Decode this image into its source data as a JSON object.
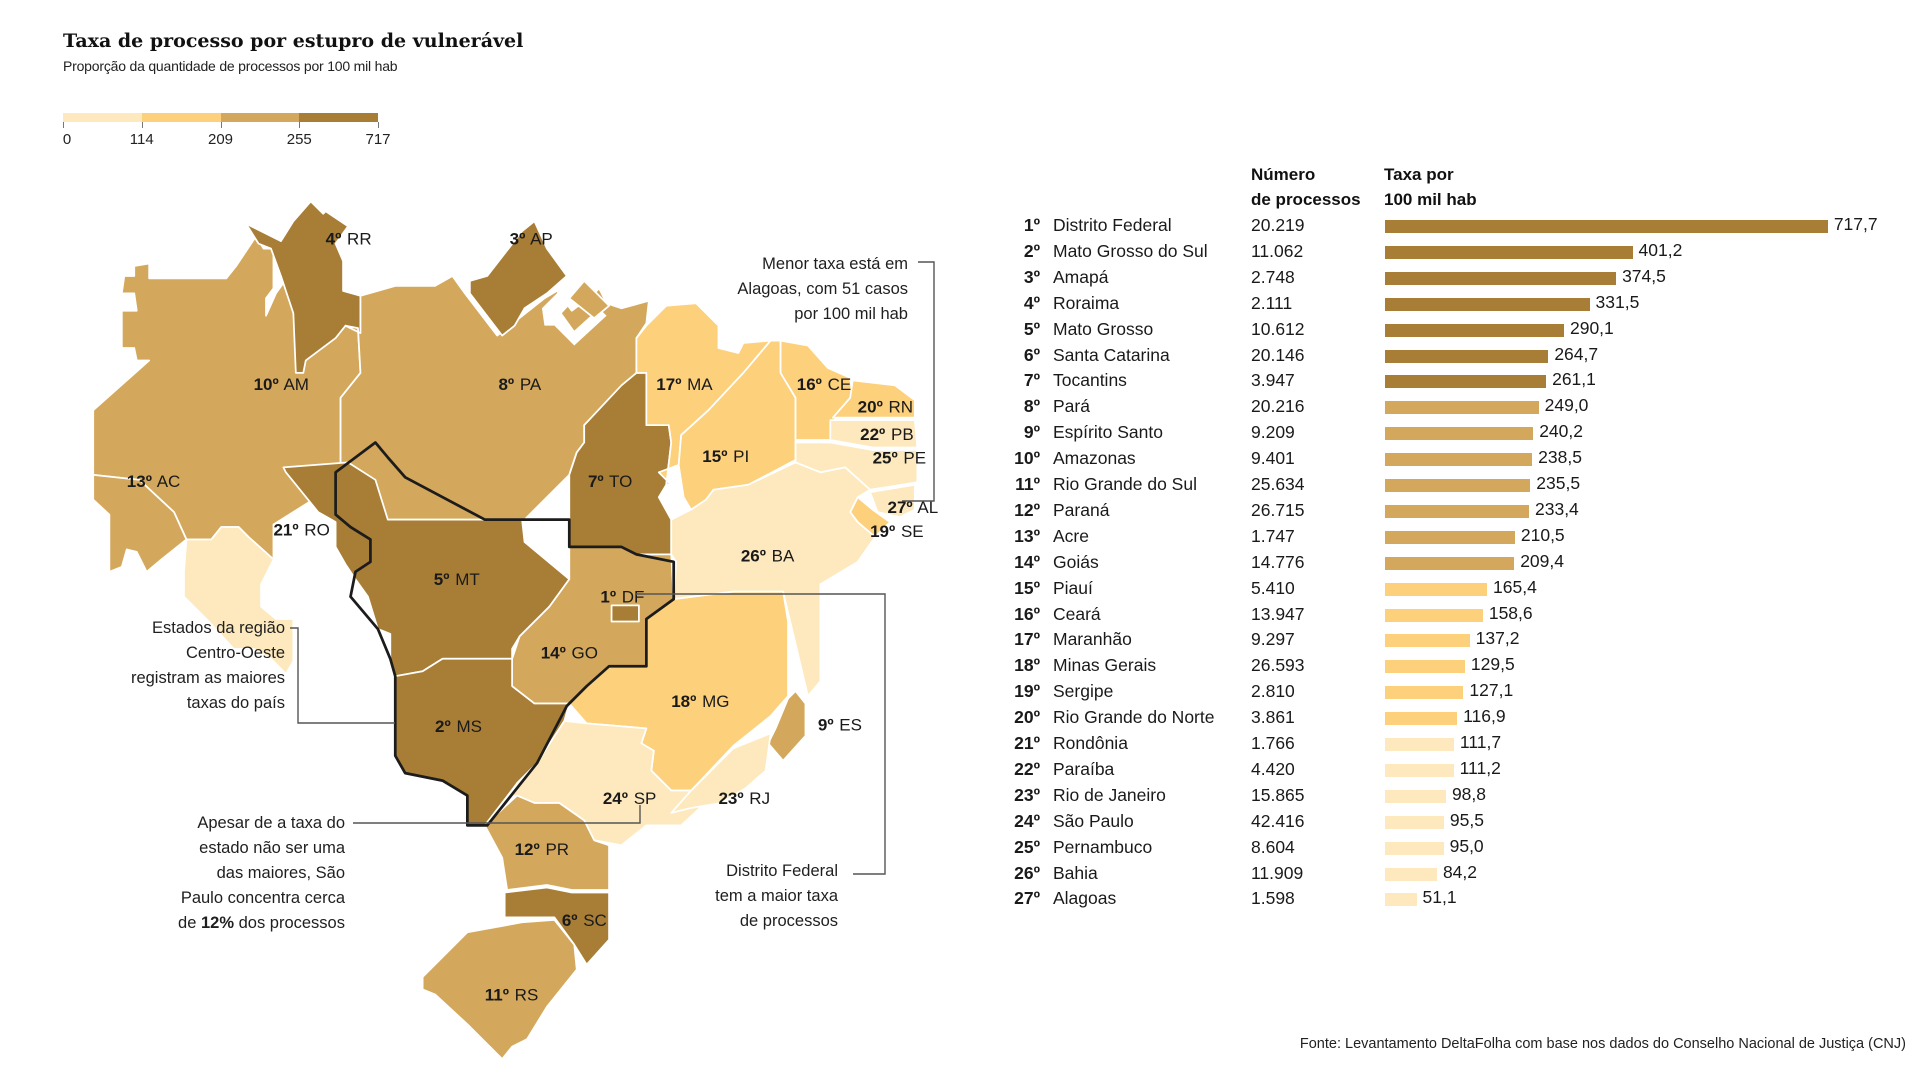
{
  "title": "Taxa de processo por estupro de vulnerável",
  "subtitle": "Proporção da quantidade de processos por 100 mil hab",
  "legend": {
    "ticks": [
      "0",
      "114",
      "209",
      "255",
      "717"
    ],
    "breaks": [
      0,
      114,
      209,
      255,
      717
    ],
    "colors": [
      "#fde9bd",
      "#fdd07c",
      "#d4a85c",
      "#a87e36"
    ]
  },
  "annotations": {
    "lowest": [
      "Menor taxa está em",
      "Alagoas, com 51 casos",
      "por 100 mil hab"
    ],
    "centro_oeste": [
      "Estados da região",
      "Centro-Oeste",
      "registram as maiores",
      "taxas do país"
    ],
    "sao_paulo": [
      "Apesar de a taxa do",
      "estado não ser uma",
      "das maiores, São",
      "Paulo concentra cerca"
    ],
    "sao_paulo_last": {
      "pre": "de ",
      "bold": "12%",
      "post": " dos processos"
    },
    "df": [
      "Distrito Federal",
      "tem a maior taxa",
      "de processos"
    ]
  },
  "table": {
    "header_count": [
      "Número",
      "de processos"
    ],
    "header_rate": [
      "Taxa por",
      "100 mil hab"
    ]
  },
  "map_labels": {
    "RR": {
      "rank": "4º",
      "uf": "RR"
    },
    "AP": {
      "rank": "3º",
      "uf": "AP"
    },
    "AM": {
      "rank": "10º",
      "uf": "AM"
    },
    "PA": {
      "rank": "8º",
      "uf": "PA"
    },
    "MA": {
      "rank": "17º",
      "uf": "MA"
    },
    "CE": {
      "rank": "16º",
      "uf": "CE"
    },
    "RN": {
      "rank": "20º",
      "uf": "RN"
    },
    "PB": {
      "rank": "22º",
      "uf": "PB"
    },
    "PE": {
      "rank": "25º",
      "uf": "PE"
    },
    "AL": {
      "rank": "27º",
      "uf": "AL"
    },
    "SE": {
      "rank": "19º",
      "uf": "SE"
    },
    "PI": {
      "rank": "15º",
      "uf": "PI"
    },
    "AC": {
      "rank": "13º",
      "uf": "AC"
    },
    "RO": {
      "rank": "21º",
      "uf": "RO"
    },
    "TO": {
      "rank": "7º",
      "uf": "TO"
    },
    "BA": {
      "rank": "26º",
      "uf": "BA"
    },
    "MT": {
      "rank": "5º",
      "uf": "MT"
    },
    "DF": {
      "rank": "1º",
      "uf": "DF"
    },
    "GO": {
      "rank": "14º",
      "uf": "GO"
    },
    "MG": {
      "rank": "18º",
      "uf": "MG"
    },
    "ES": {
      "rank": "9º",
      "uf": "ES"
    },
    "MS": {
      "rank": "2º",
      "uf": "MS"
    },
    "SP": {
      "rank": "24º",
      "uf": "SP"
    },
    "RJ": {
      "rank": "23º",
      "uf": "RJ"
    },
    "PR": {
      "rank": "12º",
      "uf": "PR"
    },
    "SC": {
      "rank": "6º",
      "uf": "SC"
    },
    "RS": {
      "rank": "11º",
      "uf": "RS"
    }
  },
  "source": "Fonte: Levantamento DeltaFolha com base nos dados do Conselho Nacional de Justiça (CNJ)",
  "chart_data": {
    "type": "bar",
    "orientation": "horizontal",
    "title": "Taxa de processo por estupro de vulnerável",
    "subtitle": "Proporção da quantidade de processos por 100 mil hab",
    "xlabel": "Taxa por 100 mil hab",
    "ylabel": "",
    "xlim": [
      0,
      717.7
    ],
    "grid": false,
    "legend": "top-left",
    "ranks": [
      "1º",
      "2º",
      "3º",
      "4º",
      "5º",
      "6º",
      "7º",
      "8º",
      "9º",
      "10º",
      "11º",
      "12º",
      "13º",
      "14º",
      "15º",
      "16º",
      "17º",
      "18º",
      "19º",
      "20º",
      "21º",
      "22º",
      "23º",
      "24º",
      "25º",
      "26º",
      "27º"
    ],
    "categories": [
      "Distrito Federal",
      "Mato Grosso do Sul",
      "Amapá",
      "Roraima",
      "Mato Grosso",
      "Santa Catarina",
      "Tocantins",
      "Pará",
      "Espírito Santo",
      "Amazonas",
      "Rio Grande do Sul",
      "Paraná",
      "Acre",
      "Goiás",
      "Piauí",
      "Ceará",
      "Maranhão",
      "Minas Gerais",
      "Sergipe",
      "Rio Grande do Norte",
      "Rondônia",
      "Paraíba",
      "Rio de Janeiro",
      "São Paulo",
      "Pernambuco",
      "Bahia",
      "Alagoas"
    ],
    "uf": [
      "DF",
      "MS",
      "AP",
      "RR",
      "MT",
      "SC",
      "TO",
      "PA",
      "ES",
      "AM",
      "RS",
      "PR",
      "AC",
      "GO",
      "PI",
      "CE",
      "MA",
      "MG",
      "SE",
      "RN",
      "RO",
      "PB",
      "RJ",
      "SP",
      "PE",
      "BA",
      "AL"
    ],
    "processes_label": [
      "20.219",
      "11.062",
      "2.748",
      "2.111",
      "10.612",
      "20.146",
      "3.947",
      "20.216",
      "9.209",
      "9.401",
      "25.634",
      "26.715",
      "1.747",
      "14.776",
      "5.410",
      "13.947",
      "9.297",
      "26.593",
      "2.810",
      "3.861",
      "1.766",
      "4.420",
      "15.865",
      "42.416",
      "8.604",
      "11.909",
      "1.598"
    ],
    "series": [
      {
        "name": "Número de processos",
        "values": [
          20219,
          11062,
          2748,
          2111,
          10612,
          20146,
          3947,
          20216,
          9209,
          9401,
          25634,
          26715,
          1747,
          14776,
          5410,
          13947,
          9297,
          26593,
          2810,
          3861,
          1766,
          4420,
          15865,
          42416,
          8604,
          11909,
          1598
        ]
      },
      {
        "name": "Taxa por 100 mil hab",
        "values": [
          717.7,
          401.2,
          374.5,
          331.5,
          290.1,
          264.7,
          261.1,
          249.0,
          240.2,
          238.5,
          235.5,
          233.4,
          210.5,
          209.4,
          165.4,
          158.6,
          137.2,
          129.5,
          127.1,
          116.9,
          111.7,
          111.2,
          98.8,
          95.5,
          95.0,
          84.2,
          51.1
        ]
      }
    ],
    "rate_labels": [
      "717,7",
      "401,2",
      "374,5",
      "331,5",
      "290,1",
      "264,7",
      "261,1",
      "249,0",
      "240,2",
      "238,5",
      "235,5",
      "233,4",
      "210,5",
      "209,4",
      "165,4",
      "158,6",
      "137,2",
      "129,5",
      "127,1",
      "116,9",
      "111,7",
      "111,2",
      "98,8",
      "95,5",
      "95,0",
      "84,2",
      "51,1"
    ]
  }
}
